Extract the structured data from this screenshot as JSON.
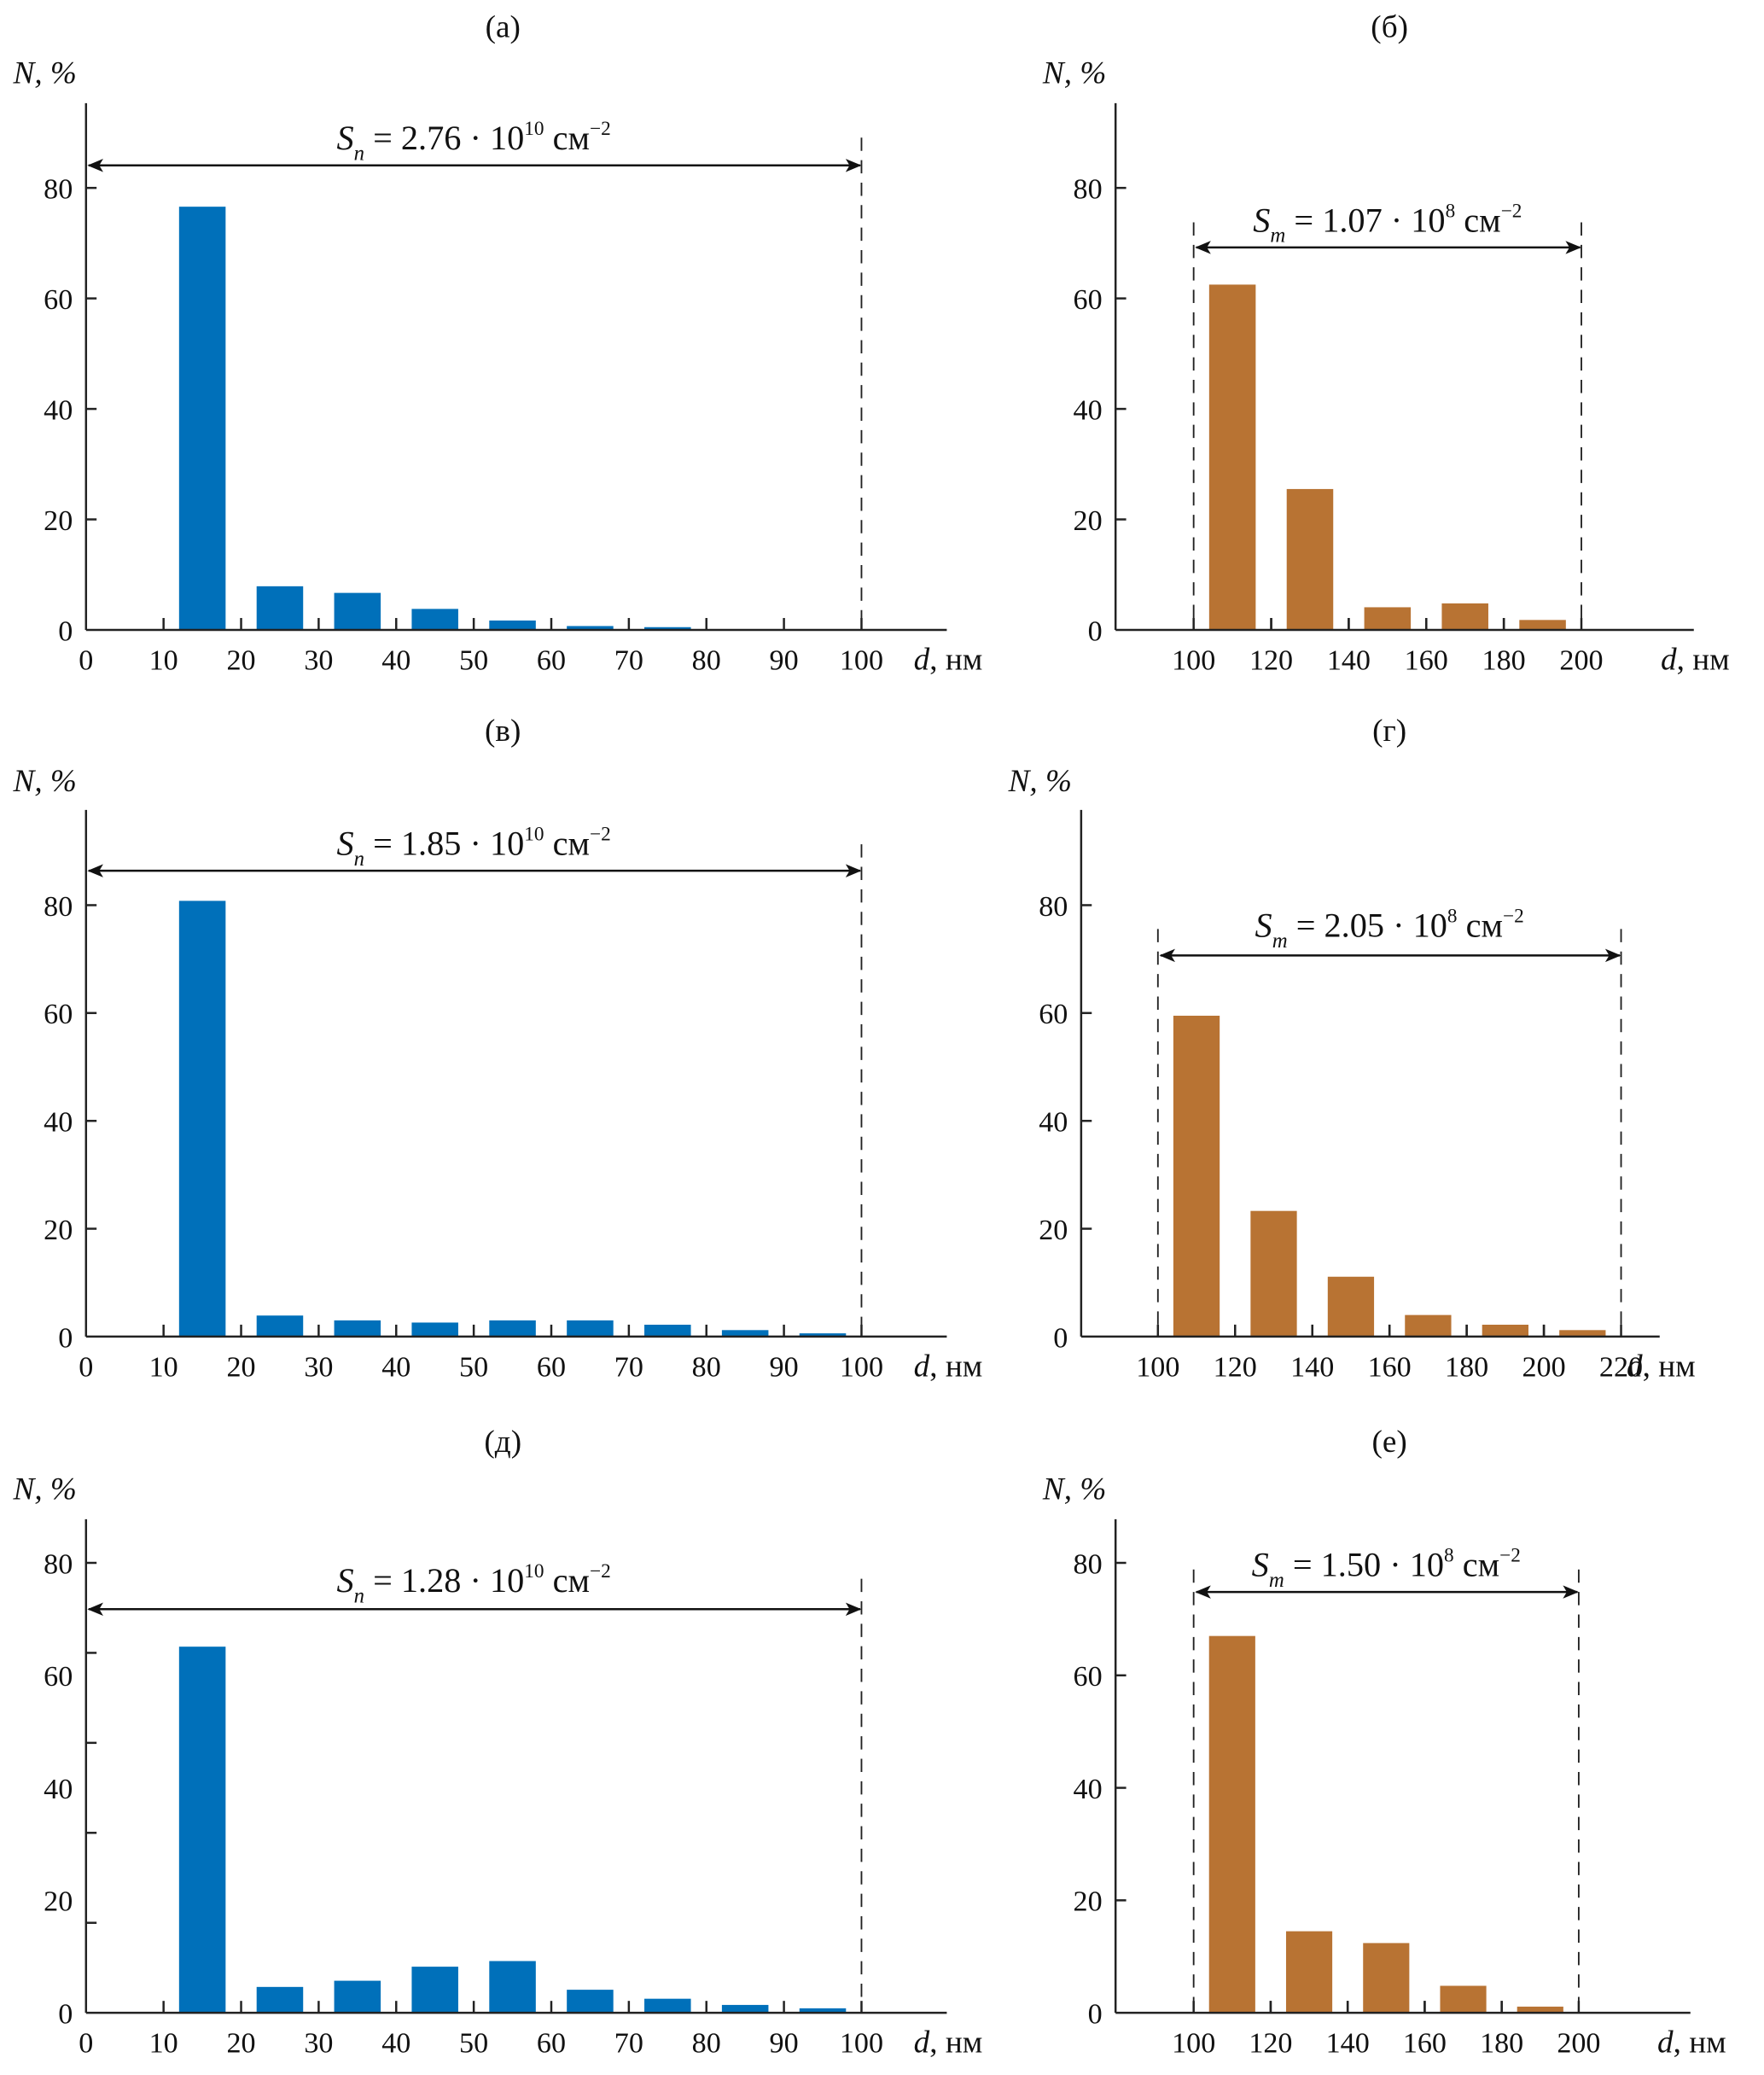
{
  "figure": {
    "colors": {
      "nanopore_bars": "#0070BA",
      "macropore_bars": "#B87333",
      "axes": "#222222"
    }
  },
  "chart_data": [
    {
      "id": "a",
      "panel_label": "(а)",
      "type": "bar",
      "ylabel": "N, %",
      "xlabel": "d, нм",
      "xlabel_var": "d",
      "xlabel_unit": ", нм",
      "annotation": {
        "symbol": "S",
        "sub": "n",
        "value": "2.76",
        "exp": "10",
        "unit": "см",
        "unit_exp": "−2",
        "range": [
          0,
          100
        ]
      },
      "x_ticks": [
        0,
        10,
        20,
        30,
        40,
        50,
        60,
        70,
        80,
        90,
        100
      ],
      "y_ticks": [
        0,
        20,
        40,
        60,
        80
      ],
      "y_minor_ticks": [],
      "xlim": [
        0,
        111
      ],
      "ylim": [
        0,
        96
      ],
      "bin_width": 10,
      "categories": [
        15,
        25,
        35,
        45,
        55,
        65,
        75
      ],
      "values": [
        76.6,
        7.9,
        6.7,
        3.8,
        1.7,
        0.7,
        0.5
      ],
      "color": "#0070BA"
    },
    {
      "id": "b",
      "panel_label": "(б)",
      "type": "bar",
      "ylabel": "N, %",
      "xlabel": "d, нм",
      "xlabel_var": "d",
      "xlabel_unit": ", нм",
      "annotation": {
        "symbol": "S",
        "sub": "m",
        "value": "1.07",
        "exp": "8",
        "unit": "см",
        "unit_exp": "−2",
        "range": [
          100,
          200
        ]
      },
      "x_ticks": [
        100,
        120,
        140,
        160,
        180,
        200
      ],
      "y_ticks": [
        0,
        20,
        40,
        60,
        80
      ],
      "y_minor_ticks": [],
      "xlim": [
        80,
        229
      ],
      "ylim": [
        0,
        96
      ],
      "bin_width": 20,
      "categories": [
        110,
        130,
        150,
        170,
        190
      ],
      "values": [
        62.5,
        25.5,
        4.1,
        4.8,
        1.8
      ],
      "color": "#B87333"
    },
    {
      "id": "v",
      "panel_label": "(в)",
      "type": "bar",
      "ylabel": "N, %",
      "xlabel": "d, нм",
      "xlabel_var": "d",
      "xlabel_unit": ", нм",
      "annotation": {
        "symbol": "S",
        "sub": "n",
        "value": "1.85",
        "exp": "10",
        "unit": "см",
        "unit_exp": "−2",
        "range": [
          0,
          100
        ]
      },
      "x_ticks": [
        0,
        10,
        20,
        30,
        40,
        50,
        60,
        70,
        80,
        90,
        100
      ],
      "y_ticks": [
        0,
        20,
        40,
        60,
        80
      ],
      "y_minor_ticks": [],
      "xlim": [
        0,
        111
      ],
      "ylim": [
        0,
        97
      ],
      "bin_width": 10,
      "categories": [
        15,
        25,
        35,
        45,
        55,
        65,
        75,
        85,
        95
      ],
      "values": [
        80.8,
        3.9,
        3.0,
        2.6,
        3.0,
        3.0,
        2.2,
        1.2,
        0.6
      ],
      "color": "#0070BA"
    },
    {
      "id": "g",
      "panel_label": "(г)",
      "type": "bar",
      "ylabel": "N, %",
      "xlabel": "d, нм",
      "xlabel_var": "d",
      "xlabel_unit": ", нм",
      "annotation": {
        "symbol": "S",
        "sub": "m",
        "value": "2.05",
        "exp": "8",
        "unit": "см",
        "unit_exp": "−2",
        "range": [
          100,
          220
        ]
      },
      "x_ticks": [
        100,
        120,
        140,
        160,
        180,
        200,
        220
      ],
      "y_ticks": [
        0,
        20,
        40,
        60,
        80
      ],
      "y_minor_ticks": [],
      "xlim": [
        80,
        230
      ],
      "ylim": [
        0,
        97
      ],
      "bin_width": 20,
      "categories": [
        110,
        130,
        150,
        170,
        190,
        210
      ],
      "values": [
        59.5,
        23.3,
        11.1,
        4.0,
        2.2,
        1.2
      ],
      "color": "#B87333"
    },
    {
      "id": "d",
      "panel_label": "(д)",
      "type": "bar",
      "ylabel": "N, %",
      "xlabel": "d, нм",
      "xlabel_var": "d",
      "xlabel_unit": ", нм",
      "annotation": {
        "symbol": "S",
        "sub": "n",
        "value": "1.28",
        "exp": "10",
        "unit": "см",
        "unit_exp": "−2",
        "range": [
          0,
          100
        ]
      },
      "x_ticks": [
        0,
        10,
        20,
        30,
        40,
        50,
        60,
        70,
        80,
        90,
        100
      ],
      "y_ticks": [
        0,
        20,
        40,
        60,
        80
      ],
      "y_minor_ticks": [
        16,
        32,
        48,
        64
      ],
      "xlim": [
        0,
        111
      ],
      "ylim": [
        0,
        88
      ],
      "bin_width": 10,
      "categories": [
        15,
        25,
        35,
        45,
        55,
        65,
        75,
        85,
        95
      ],
      "values": [
        65.1,
        4.6,
        5.7,
        8.2,
        9.2,
        4.1,
        2.5,
        1.4,
        0.8
      ],
      "color": "#0070BA"
    },
    {
      "id": "e",
      "panel_label": "(е)",
      "type": "bar",
      "ylabel": "N, %",
      "xlabel": "d, нм",
      "xlabel_var": "d",
      "xlabel_unit": ", нм",
      "annotation": {
        "symbol": "S",
        "sub": "m",
        "value": "1.50",
        "exp": "8",
        "unit": "см",
        "unit_exp": "−2",
        "range": [
          100,
          200
        ]
      },
      "x_ticks": [
        100,
        120,
        140,
        160,
        180,
        200
      ],
      "y_ticks": [
        0,
        20,
        40,
        60,
        80
      ],
      "y_minor_ticks": [],
      "xlim": [
        80,
        229
      ],
      "ylim": [
        0,
        88
      ],
      "bin_width": 20,
      "categories": [
        110,
        130,
        150,
        170,
        190
      ],
      "values": [
        67.0,
        14.5,
        12.4,
        4.8,
        1.1
      ],
      "color": "#B87333"
    }
  ]
}
